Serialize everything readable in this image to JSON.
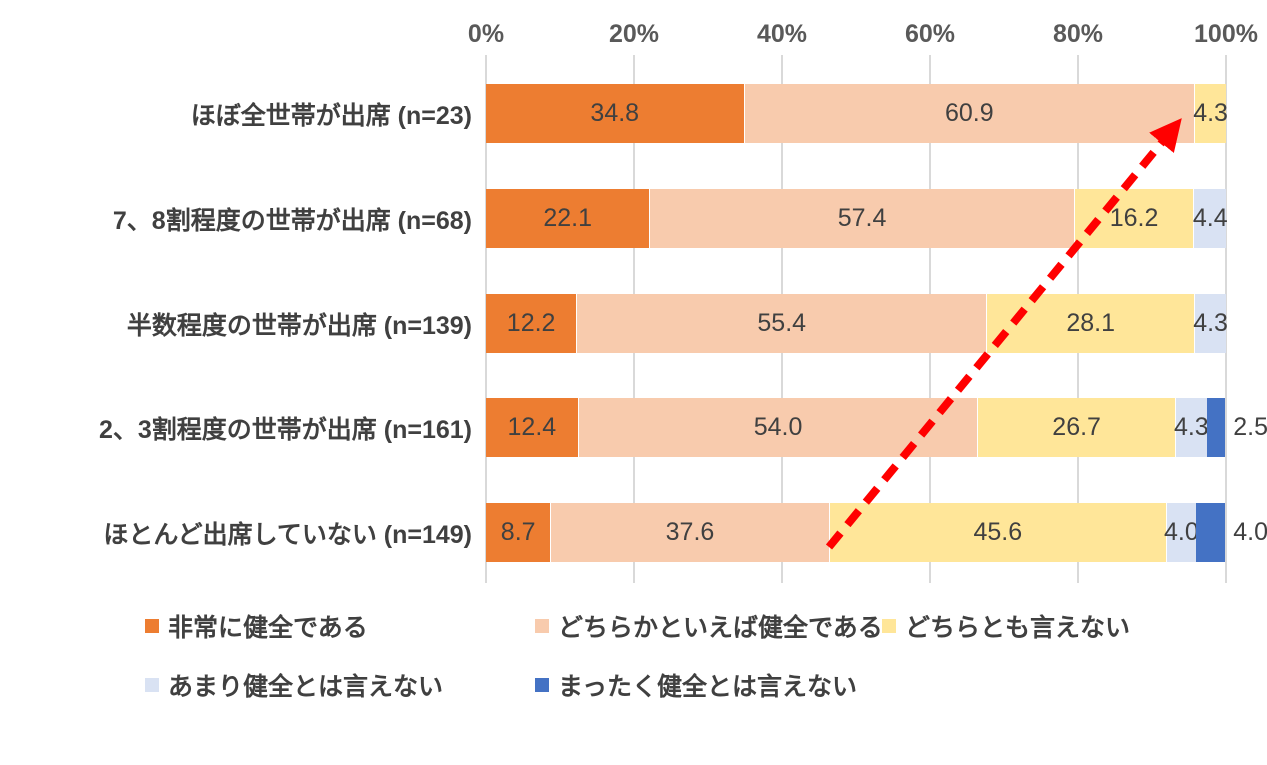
{
  "chart_data": {
    "type": "bar",
    "orientation": "horizontal-stacked",
    "title": "",
    "xlabel": "",
    "ylabel": "",
    "categories": [
      "ほぼ全世帯が出席 (n=23)",
      "7、8割程度の世帯が出席 (n=68)",
      "半数程度の世帯が出席 (n=139)",
      "2、3割程度の世帯が出席 (n=161)",
      "ほとんど出席していない (n=149)"
    ],
    "series": [
      {
        "name": "非常に健全である",
        "color": "#ED7D31",
        "values": [
          34.8,
          22.1,
          12.2,
          12.4,
          8.7
        ]
      },
      {
        "name": "どちらかといえば健全である",
        "color": "#F8CBAD",
        "values": [
          60.9,
          57.4,
          55.4,
          54.0,
          37.6
        ]
      },
      {
        "name": "どちらとも言えない",
        "color": "#FFE699",
        "values": [
          4.3,
          16.2,
          28.1,
          26.7,
          45.6
        ]
      },
      {
        "name": "あまり健全とは言えない",
        "color": "#D9E2F3",
        "values": [
          null,
          4.4,
          4.3,
          4.3,
          4.0
        ]
      },
      {
        "name": "まったく健全とは言えない",
        "color": "#4472C4",
        "values": [
          null,
          null,
          null,
          2.5,
          4.0
        ],
        "label_outside": true
      }
    ],
    "x_axis": {
      "position": "top",
      "min": 0,
      "max": 100,
      "ticks": [
        "0%",
        "20%",
        "40%",
        "60%",
        "80%",
        "100%"
      ]
    },
    "value_label_decimals": 1,
    "gridlines": true,
    "legend_position": "bottom",
    "annotations": [
      {
        "type": "arrow",
        "style": "dashed",
        "color": "#FF0000",
        "description": "red dashed trend arrow rising from the bottom-left bar toward the top-right of the first bar"
      }
    ],
    "text_colors": {
      "axis": "#595959",
      "category": "#404040",
      "data_label": "#404040",
      "legend": "#404040",
      "gridline": "#D9D9D9"
    }
  }
}
